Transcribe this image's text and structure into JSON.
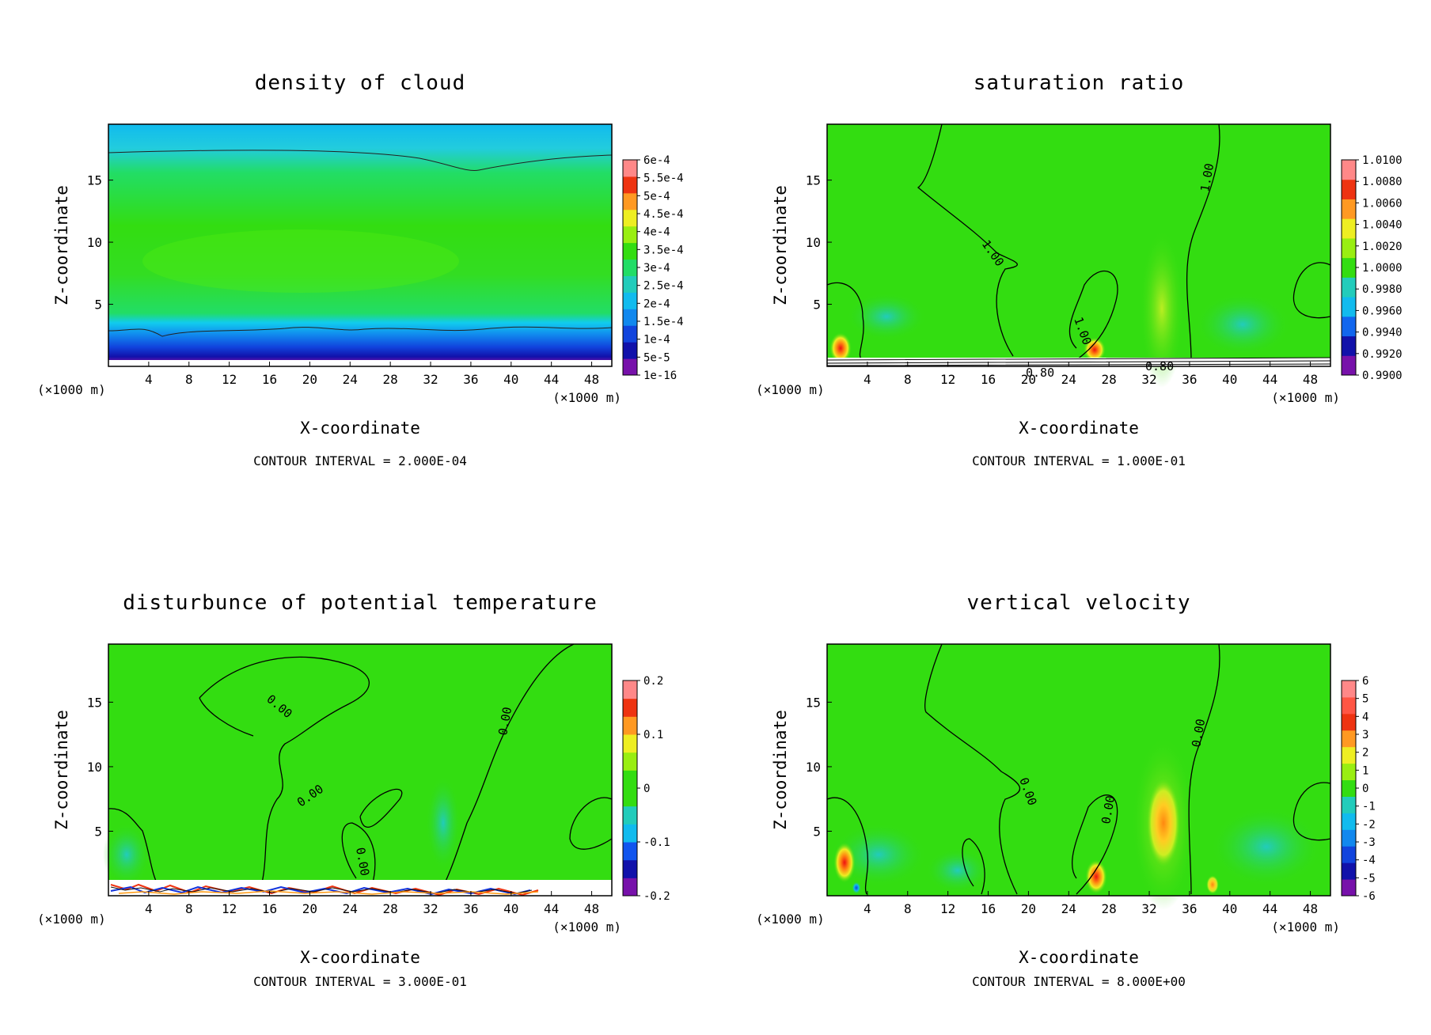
{
  "chart_data": [
    {
      "type": "heatmap",
      "title": "density of cloud",
      "xlabel": "X-coordinate",
      "ylabel": "Z-coordinate",
      "x_unit_left": "(×1000 m)",
      "x_unit_right": "(×1000 m)",
      "xlim": [
        0,
        50
      ],
      "ylim": [
        0,
        19.5
      ],
      "x_ticks": [
        4,
        8,
        12,
        16,
        20,
        24,
        28,
        32,
        36,
        40,
        44,
        48
      ],
      "y_ticks": [
        5,
        10,
        15
      ],
      "colorbar": [
        "1e-16",
        "5e-5",
        "1e-4",
        "1.5e-4",
        "2e-4",
        "2.5e-4",
        "3e-4",
        "3.5e-4",
        "4e-4",
        "4.5e-4",
        "5e-4",
        "5.5e-4",
        "6e-4"
      ],
      "contour_interval": "CONTOUR INTERVAL = 2.000E-04",
      "contour_labels": []
    },
    {
      "type": "heatmap",
      "title": "saturation ratio",
      "xlabel": "X-coordinate",
      "ylabel": "Z-coordinate",
      "x_unit_left": "(×1000 m)",
      "x_unit_right": "(×1000 m)",
      "xlim": [
        0,
        50
      ],
      "ylim": [
        0,
        19.5
      ],
      "x_ticks": [
        4,
        8,
        12,
        16,
        20,
        24,
        28,
        32,
        36,
        40,
        44,
        48
      ],
      "y_ticks": [
        5,
        10,
        15
      ],
      "colorbar": [
        "0.9900",
        "0.9920",
        "0.9940",
        "0.9960",
        "0.9980",
        "1.0000",
        "1.0020",
        "1.0040",
        "1.0060",
        "1.0080",
        "1.0100"
      ],
      "contour_interval": "CONTOUR INTERVAL = 1.000E-01",
      "contour_labels": [
        "1.00",
        "1.00",
        "1.00",
        "0.80",
        "0.80"
      ]
    },
    {
      "type": "heatmap",
      "title": "disturbunce of potential temperature",
      "xlabel": "X-coordinate",
      "ylabel": "Z-coordinate",
      "x_unit_left": "(×1000 m)",
      "x_unit_right": "(×1000 m)",
      "xlim": [
        0,
        50
      ],
      "ylim": [
        0,
        19.5
      ],
      "x_ticks": [
        4,
        8,
        12,
        16,
        20,
        24,
        28,
        32,
        36,
        40,
        44,
        48
      ],
      "y_ticks": [
        5,
        10,
        15
      ],
      "colorbar": [
        "-0.2",
        "-0.1",
        "0",
        "0.1",
        "0.2"
      ],
      "contour_interval": "CONTOUR INTERVAL = 3.000E-01",
      "contour_labels": [
        "0.00",
        "0.00",
        "0.00",
        "0.00"
      ]
    },
    {
      "type": "heatmap",
      "title": "vertical velocity",
      "xlabel": "X-coordinate",
      "ylabel": "Z-coordinate",
      "x_unit_left": "(×1000 m)",
      "x_unit_right": "(×1000 m)",
      "xlim": [
        0,
        50
      ],
      "ylim": [
        0,
        19.5
      ],
      "x_ticks": [
        4,
        8,
        12,
        16,
        20,
        24,
        28,
        32,
        36,
        40,
        44,
        48
      ],
      "y_ticks": [
        5,
        10,
        15
      ],
      "colorbar": [
        "-6",
        "-5",
        "-4",
        "-3",
        "-2",
        "-1",
        "0",
        "1",
        "2",
        "3",
        "4",
        "5",
        "6"
      ],
      "contour_interval": "CONTOUR INTERVAL = 8.000E+00",
      "contour_labels": [
        "0.00",
        "0.00",
        "0.00"
      ]
    }
  ],
  "colors": {
    "green": "#22dd11",
    "cyan": "#11ccee",
    "blue": "#1155ee",
    "darkblue": "#1111aa",
    "purple": "#7711aa",
    "yellow": "#eeee22",
    "orange": "#ff9922",
    "red": "#ee2211",
    "pink": "#ff8888"
  }
}
